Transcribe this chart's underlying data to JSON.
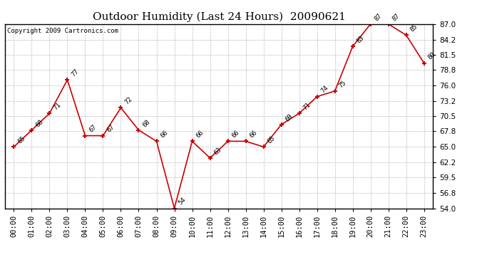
{
  "title": "Outdoor Humidity (Last 24 Hours)  20090621",
  "copyright": "Copyright 2009 Cartronics.com",
  "hours": [
    0,
    1,
    2,
    3,
    4,
    5,
    6,
    7,
    8,
    9,
    10,
    11,
    12,
    13,
    14,
    15,
    16,
    17,
    18,
    19,
    20,
    21,
    22,
    23
  ],
  "values": [
    65,
    68,
    71,
    77,
    67,
    67,
    72,
    68,
    66,
    54,
    66,
    63,
    66,
    66,
    65,
    69,
    71,
    74,
    75,
    83,
    87,
    87,
    85,
    80
  ],
  "labels": [
    "65",
    "68",
    "71",
    "77",
    "67",
    "67",
    "72",
    "68",
    "66",
    "54",
    "66",
    "63",
    "66",
    "66",
    "65",
    "69",
    "71",
    "74",
    "75",
    "83",
    "87",
    "87",
    "85",
    "80"
  ],
  "line_color": "#cc0000",
  "marker_color": "#cc0000",
  "bg_color": "#ffffff",
  "grid_color": "#bbbbbb",
  "ylim": [
    54.0,
    87.0
  ],
  "yticks": [
    54.0,
    56.8,
    59.5,
    62.2,
    65.0,
    67.8,
    70.5,
    73.2,
    76.0,
    78.8,
    81.5,
    84.2,
    87.0
  ],
  "title_fontsize": 11,
  "label_fontsize": 6.5,
  "tick_fontsize": 7.5,
  "copyright_fontsize": 6.5
}
